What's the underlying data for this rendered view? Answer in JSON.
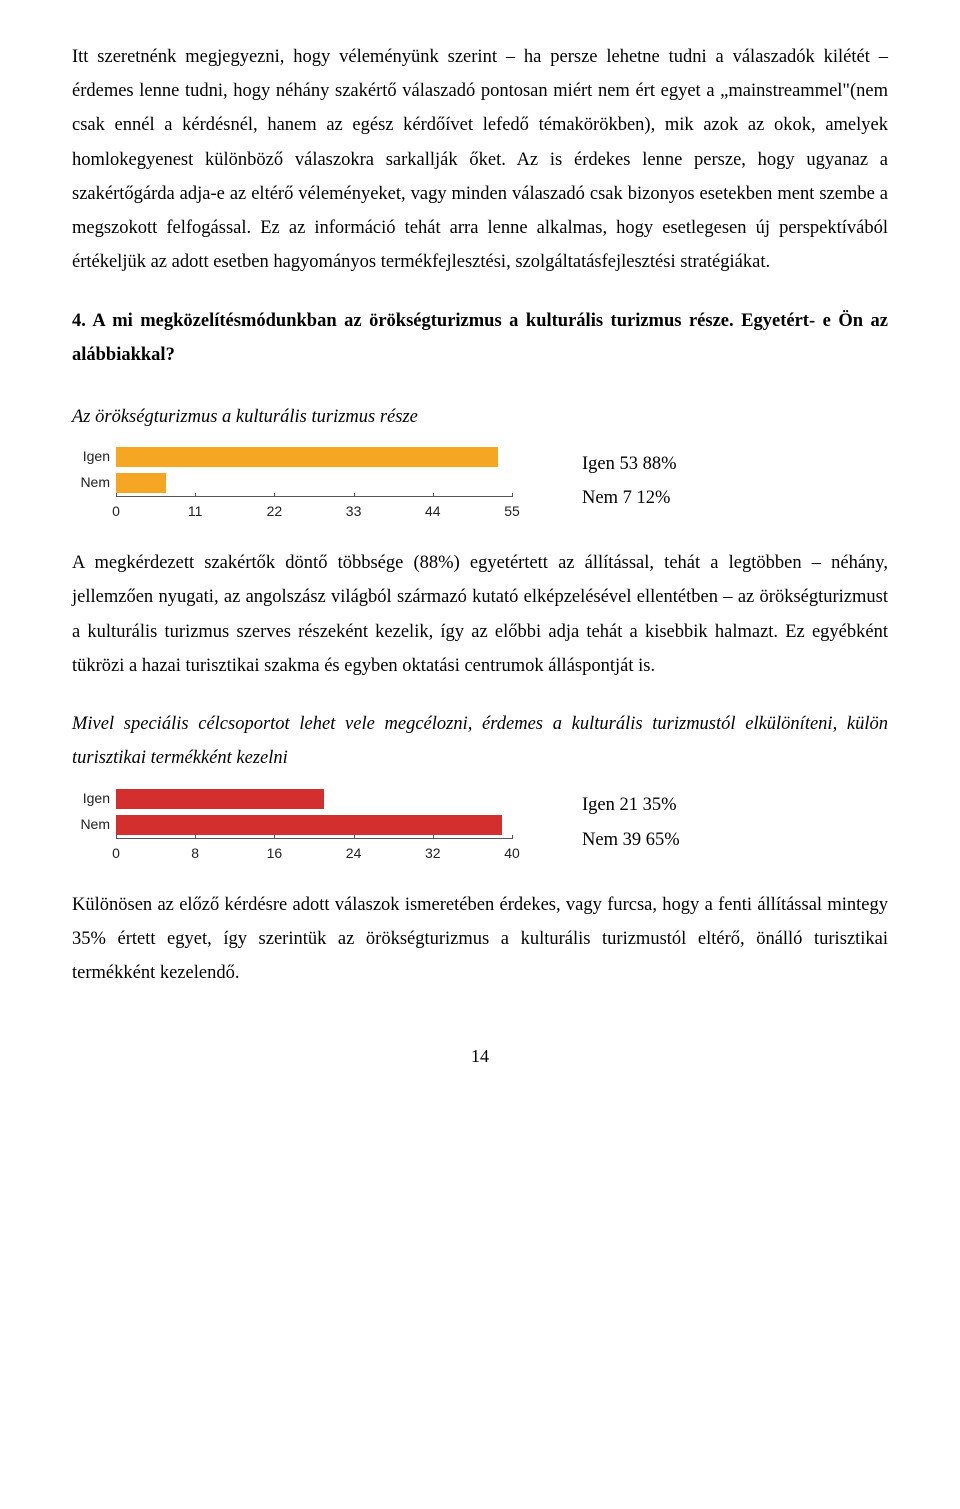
{
  "para1": "Itt szeretnénk megjegyezni, hogy véleményünk szerint – ha persze lehetne tudni a válaszadók kilétét – érdemes lenne tudni, hogy néhány szakértő válaszadó pontosan miért nem ért egyet a „mainstreammel\"(nem csak ennél a kérdésnél, hanem az egész kérdőívet lefedő témakörökben), mik azok az okok, amelyek homlokegyenest különböző válaszokra sarkallják őket. Az is érdekes lenne persze, hogy ugyanaz a szakértőgárda adja-e az eltérő véleményeket, vagy minden válaszadó csak bizonyos esetekben ment szembe a megszokott felfogással. Ez az információ tehát arra lenne alkalmas, hogy esetlegesen új perspektívából értékeljük az adott esetben hagyományos termékfejlesztési, szolgáltatásfejlesztési stratégiákat.",
  "q4_heading": "4. A mi megközelítésmódunkban az örökségturizmus a kulturális turizmus része. Egyetért- e Ön az alábbiakkal?",
  "sub1": "Az örökségturizmus a kulturális turizmus része",
  "chart1": {
    "type": "bar",
    "categories": [
      "Igen",
      "Nem"
    ],
    "values": [
      53,
      7
    ],
    "xmax": 55,
    "ticks": [
      0,
      11,
      22,
      33,
      44,
      55
    ],
    "bar_color": "#f5a623",
    "label_font": "Arial",
    "label_fontsize": 14,
    "background": "#ffffff"
  },
  "result1_line1": "Igen  53 88%",
  "result1_line2": "Nem 7   12%",
  "para2": "A megkérdezett szakértők döntő többsége (88%) egyetértett az állítással, tehát a legtöbben – néhány, jellemzően nyugati, az angolszász világból származó kutató elképzelésével ellentétben – az örökségturizmust a kulturális turizmus szerves részeként kezelik, így az előbbi adja tehát a kisebbik halmazt. Ez egyébként tükrözi a hazai turisztikai szakma és egyben oktatási centrumok álláspontját is.",
  "sub2": "Mivel speciális célcsoportot lehet vele megcélozni, érdemes a kulturális turizmustól elkülöníteni, külön turisztikai termékként kezelni",
  "chart2": {
    "type": "bar",
    "categories": [
      "Igen",
      "Nem"
    ],
    "values": [
      21,
      39
    ],
    "xmax": 40,
    "ticks": [
      0,
      8,
      16,
      24,
      32,
      40
    ],
    "bar_color": "#d32f2f",
    "label_font": "Arial",
    "label_fontsize": 14,
    "background": "#ffffff"
  },
  "result2_line1": "Igen  21 35%",
  "result2_line2": "Nem 39 65%",
  "para3": "Különösen az előző kérdésre adott válaszok ismeretében érdekes, vagy furcsa, hogy a fenti állítással mintegy 35% értett egyet, így szerintük az örökségturizmus a kulturális turizmustól eltérő, önálló turisztikai termékként kezelendő.",
  "page_number": "14"
}
